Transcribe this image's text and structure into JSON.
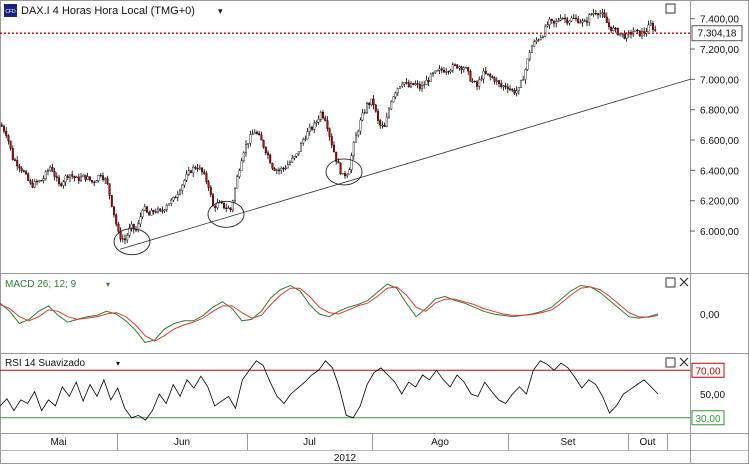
{
  "header": {
    "instrument_badge": "CFD",
    "title": "DAX.I 4 Horas Hora Local (TMG+0)",
    "dropdown_glyph": "▾",
    "last_price": "7.304,18"
  },
  "panels": {
    "macd": {
      "label": "MACD 26; 12; 9",
      "dropdown_glyph": "▾",
      "zero_label": "0,00"
    },
    "rsi": {
      "label": "RSI 14 Suavizado",
      "dropdown_glyph": "▾"
    }
  },
  "x_axis": {
    "months": [
      "Mai",
      "Jun",
      "Jul",
      "Ago",
      "Set",
      "Out"
    ],
    "year": "2012"
  },
  "colors": {
    "up_candle": "#ffffff",
    "down_candle": "#cc0000",
    "wick": "#000000",
    "price_line": "#cc0000",
    "macd_line": "#2e7d32",
    "signal_line": "#e53935",
    "rsi_line": "#000000",
    "rsi_upper": "#cc0000",
    "rsi_lower": "#2e9a2e",
    "grid": "#cccccc"
  },
  "chart_data": [
    {
      "type": "candlestick",
      "title": "DAX.I 4 Horas Hora Local (TMG+0)",
      "y_ticks": [
        6000,
        6200,
        6400,
        6600,
        6800,
        7000,
        7200,
        7400
      ],
      "y_tick_labels": [
        "6.000,00",
        "6.200,00",
        "6.400,00",
        "6.600,00",
        "6.800,00",
        "7.000,00",
        "7.200,00",
        "7.400,00"
      ],
      "ylim": [
        5730,
        7510
      ],
      "last_price": 7304.18,
      "price_path": [
        [
          0,
          6700
        ],
        [
          6,
          6640
        ],
        [
          12,
          6480
        ],
        [
          20,
          6420
        ],
        [
          30,
          6300
        ],
        [
          42,
          6340
        ],
        [
          50,
          6430
        ],
        [
          58,
          6300
        ],
        [
          68,
          6380
        ],
        [
          76,
          6340
        ],
        [
          84,
          6360
        ],
        [
          92,
          6320
        ],
        [
          100,
          6380
        ],
        [
          106,
          6320
        ],
        [
          112,
          6150
        ],
        [
          118,
          5970
        ],
        [
          124,
          5940
        ],
        [
          130,
          6030
        ],
        [
          136,
          6000
        ],
        [
          142,
          6160
        ],
        [
          148,
          6100
        ],
        [
          154,
          6140
        ],
        [
          160,
          6120
        ],
        [
          166,
          6180
        ],
        [
          172,
          6200
        ],
        [
          178,
          6270
        ],
        [
          184,
          6340
        ],
        [
          190,
          6400
        ],
        [
          196,
          6430
        ],
        [
          202,
          6380
        ],
        [
          208,
          6300
        ],
        [
          212,
          6160
        ],
        [
          218,
          6180
        ],
        [
          224,
          6160
        ],
        [
          230,
          6140
        ],
        [
          236,
          6340
        ],
        [
          242,
          6520
        ],
        [
          248,
          6600
        ],
        [
          254,
          6660
        ],
        [
          260,
          6600
        ],
        [
          266,
          6520
        ],
        [
          272,
          6420
        ],
        [
          278,
          6400
        ],
        [
          284,
          6420
        ],
        [
          290,
          6460
        ],
        [
          296,
          6500
        ],
        [
          302,
          6600
        ],
        [
          308,
          6660
        ],
        [
          314,
          6700
        ],
        [
          320,
          6780
        ],
        [
          325,
          6740
        ],
        [
          330,
          6600
        ],
        [
          336,
          6460
        ],
        [
          342,
          6360
        ],
        [
          348,
          6400
        ],
        [
          354,
          6600
        ],
        [
          360,
          6730
        ],
        [
          366,
          6830
        ],
        [
          372,
          6860
        ],
        [
          378,
          6700
        ],
        [
          384,
          6680
        ],
        [
          390,
          6860
        ],
        [
          396,
          6940
        ],
        [
          402,
          6990
        ],
        [
          408,
          6950
        ],
        [
          414,
          6970
        ],
        [
          420,
          6940
        ],
        [
          426,
          6990
        ],
        [
          432,
          7030
        ],
        [
          440,
          7060
        ],
        [
          448,
          7070
        ],
        [
          456,
          7090
        ],
        [
          464,
          7080
        ],
        [
          470,
          7000
        ],
        [
          476,
          6950
        ],
        [
          482,
          7040
        ],
        [
          488,
          7020
        ],
        [
          494,
          7000
        ],
        [
          500,
          6950
        ],
        [
          506,
          6960
        ],
        [
          512,
          6920
        ],
        [
          518,
          6930
        ],
        [
          524,
          7050
        ],
        [
          530,
          7210
        ],
        [
          536,
          7260
        ],
        [
          542,
          7300
        ],
        [
          548,
          7380
        ],
        [
          554,
          7360
        ],
        [
          560,
          7420
        ],
        [
          566,
          7390
        ],
        [
          572,
          7400
        ],
        [
          578,
          7390
        ],
        [
          584,
          7370
        ],
        [
          590,
          7430
        ],
        [
          596,
          7450
        ],
        [
          602,
          7420
        ],
        [
          608,
          7350
        ],
        [
          614,
          7320
        ],
        [
          620,
          7300
        ],
        [
          626,
          7280
        ],
        [
          632,
          7320
        ],
        [
          638,
          7300
        ],
        [
          644,
          7310
        ],
        [
          650,
          7360
        ],
        [
          656,
          7310
        ],
        [
          658,
          7304
        ]
      ],
      "trendline": {
        "start": [
          120,
          5880
        ],
        "end": [
          690,
          7000
        ]
      },
      "highlight_circles": [
        [
          132,
          5930
        ],
        [
          226,
          6110
        ],
        [
          344,
          6390
        ]
      ]
    },
    {
      "type": "line",
      "title": "MACD 26; 12; 9",
      "series": [
        {
          "name": "MACD",
          "values": [
            40,
            10,
            -35,
            -20,
            10,
            30,
            -5,
            -30,
            -20,
            -10,
            -5,
            10,
            0,
            -25,
            -60,
            -105,
            -95,
            -55,
            -35,
            -25,
            -25,
            -5,
            25,
            45,
            20,
            -25,
            -20,
            10,
            60,
            90,
            105,
            85,
            35,
            0,
            -10,
            10,
            25,
            35,
            50,
            80,
            110,
            95,
            40,
            -10,
            20,
            55,
            65,
            50,
            40,
            25,
            10,
            0,
            -5,
            -10,
            -5,
            0,
            10,
            25,
            55,
            85,
            105,
            100,
            80,
            50,
            20,
            -10,
            -15,
            -10,
            0
          ]
        },
        {
          "name": "Signal",
          "values": [
            35,
            20,
            -10,
            -25,
            -10,
            15,
            10,
            -10,
            -20,
            -15,
            -10,
            0,
            5,
            -10,
            -40,
            -80,
            -100,
            -80,
            -55,
            -40,
            -30,
            -15,
            10,
            30,
            30,
            5,
            -15,
            -5,
            35,
            70,
            95,
            95,
            65,
            25,
            5,
            0,
            15,
            30,
            40,
            65,
            95,
            100,
            70,
            25,
            10,
            40,
            55,
            55,
            45,
            35,
            20,
            10,
            0,
            -5,
            -5,
            -2,
            5,
            15,
            40,
            70,
            95,
            100,
            90,
            65,
            35,
            5,
            -10,
            -12,
            -5
          ]
        }
      ],
      "zero_label": "0,00",
      "ylim": [
        -140,
        140
      ]
    },
    {
      "type": "line",
      "title": "RSI 14 Suavizado",
      "series": [
        {
          "name": "RSI",
          "values": [
            40,
            46,
            36,
            45,
            42,
            52,
            36,
            45,
            40,
            56,
            48,
            60,
            44,
            58,
            48,
            62,
            45,
            55,
            38,
            30,
            32,
            28,
            36,
            50,
            42,
            58,
            48,
            62,
            55,
            65,
            56,
            40,
            44,
            48,
            38,
            62,
            70,
            78,
            74,
            60,
            48,
            42,
            50,
            55,
            60,
            66,
            70,
            78,
            72,
            55,
            32,
            30,
            40,
            58,
            68,
            72,
            66,
            60,
            50,
            60,
            56,
            66,
            62,
            70,
            62,
            56,
            66,
            60,
            50,
            48,
            60,
            52,
            45,
            42,
            50,
            56,
            50,
            70,
            78,
            75,
            70,
            76,
            72,
            64,
            55,
            62,
            58,
            48,
            34,
            40,
            50,
            54,
            58,
            62,
            56,
            50
          ]
        }
      ],
      "levels": [
        70,
        30
      ],
      "level_labels": [
        "70,00",
        "30,00"
      ],
      "mid_label": "50,00",
      "ylim": [
        18,
        82
      ]
    }
  ]
}
